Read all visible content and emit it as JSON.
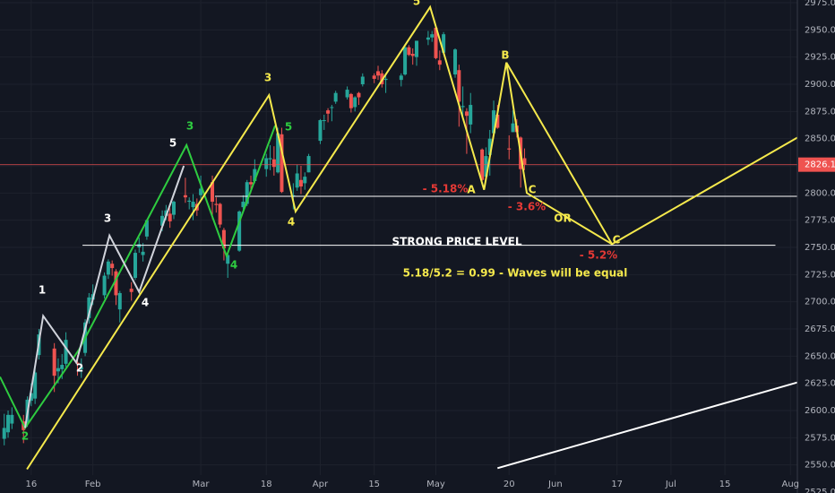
{
  "chart_data": {
    "type": "candlestick",
    "up_color": "#26a69a",
    "down_color": "#ef5350",
    "grid": true,
    "xlim": [
      7.9,
      214.8
    ],
    "ylim": [
      2525,
      2975
    ],
    "xticks": [
      16,
      {
        "value": 32,
        "label": "Feb"
      },
      {
        "value": 60,
        "label": "Mar"
      },
      {
        "value": 77,
        "label": "18"
      },
      {
        "value": 91,
        "label": "Apr"
      },
      {
        "value": 105,
        "label": "15"
      },
      {
        "value": 121,
        "label": "May"
      },
      {
        "value": 140,
        "label": "20"
      },
      {
        "value": 152,
        "label": "Jun"
      },
      {
        "value": 168,
        "label": "17"
      },
      {
        "value": 182,
        "label": "Jul"
      },
      {
        "value": 196,
        "label": "15"
      },
      {
        "value": 213,
        "label": "Aug"
      }
    ],
    "yticks": [
      {
        "value": 2525,
        "label": "2525.0"
      },
      {
        "value": 2550,
        "label": "2550.0"
      },
      {
        "value": 2575,
        "label": "2575.0"
      },
      {
        "value": 2600,
        "label": "2600.0"
      },
      {
        "value": 2625,
        "label": "2625.0"
      },
      {
        "value": 2650,
        "label": "2650.0"
      },
      {
        "value": 2675,
        "label": "2675.0"
      },
      {
        "value": 2700,
        "label": "2700.0"
      },
      {
        "value": 2725,
        "label": "2725.0"
      },
      {
        "value": 2750,
        "label": "2750.0"
      },
      {
        "value": 2775,
        "label": "2775.0"
      },
      {
        "value": 2800,
        "label": "2800.0"
      },
      {
        "value": 2825,
        "label": "2825.0"
      },
      {
        "value": 2850,
        "label": "2850.0"
      },
      {
        "value": 2875,
        "label": "2875.0"
      },
      {
        "value": 2900,
        "label": "2900.0"
      },
      {
        "value": 2925,
        "label": "2925.0"
      },
      {
        "value": 2950,
        "label": "2950.0"
      },
      {
        "value": 2975,
        "label": "2975.0"
      }
    ],
    "x": [
      9,
      10,
      11,
      14,
      15,
      16,
      17,
      18,
      22,
      23,
      24,
      25,
      28,
      29,
      30,
      31,
      32,
      35,
      36,
      37,
      38,
      39,
      42,
      43,
      44,
      45,
      46,
      50,
      51,
      52,
      53,
      56,
      57,
      58,
      59,
      60,
      63,
      64,
      65,
      66,
      67,
      70,
      71,
      72,
      73,
      74,
      77,
      78,
      79,
      80,
      81,
      84,
      85,
      86,
      87,
      88,
      91,
      92,
      93,
      94,
      95,
      98,
      99,
      100,
      101,
      102,
      105,
      106,
      107,
      108,
      112,
      113,
      114,
      115,
      116,
      119,
      120,
      121,
      122,
      123,
      126,
      127,
      128,
      129,
      130,
      133,
      134,
      135,
      136,
      137,
      140,
      141,
      142,
      143,
      144
    ],
    "open": [
      2574,
      2580,
      2588,
      2590,
      2588,
      2609,
      2611,
      2651,
      2657,
      2636,
      2638,
      2643,
      2644,
      2638,
      2653,
      2685,
      2702,
      2706,
      2725,
      2735,
      2728,
      2693,
      2712,
      2722,
      2750,
      2743,
      2760,
      2770,
      2779,
      2781,
      2780,
      2798,
      2792,
      2787,
      2790,
      2798,
      2810,
      2790,
      2790,
      2766,
      2735,
      2747,
      2787,
      2790,
      2810,
      2811,
      2822,
      2831,
      2831,
      2819,
      2854,
      2797,
      2805,
      2812,
      2809,
      2819,
      2848,
      2867,
      2876,
      2879,
      2884,
      2888,
      2891,
      2879,
      2892,
      2900,
      2908,
      2912,
      2910,
      2904,
      2904,
      2909,
      2934,
      2928,
      2925,
      2941,
      2943,
      2952,
      2922,
      2929,
      2909,
      2913,
      2879,
      2875,
      2863,
      2840,
      2815,
      2835,
      2855,
      2872,
      2841,
      2856,
      2862,
      2851,
      2832
    ],
    "high": [
      2597,
      2600,
      2603,
      2596,
      2613,
      2625,
      2639,
      2675,
      2662,
      2648,
      2652,
      2672,
      2651,
      2648,
      2684,
      2708,
      2716,
      2727,
      2739,
      2738,
      2730,
      2710,
      2718,
      2748,
      2759,
      2754,
      2776,
      2784,
      2789,
      2786,
      2793,
      2814,
      2796,
      2799,
      2795,
      2816,
      2816,
      2796,
      2791,
      2768,
      2745,
      2784,
      2798,
      2812,
      2816,
      2831,
      2836,
      2844,
      2843,
      2860,
      2860,
      2809,
      2826,
      2825,
      2819,
      2836,
      2868,
      2872,
      2878,
      2881,
      2894,
      2898,
      2892,
      2889,
      2893,
      2910,
      2910,
      2917,
      2913,
      2908,
      2910,
      2937,
      2936,
      2933,
      2940,
      2949,
      2949,
      2955,
      2931,
      2948,
      2933,
      2918,
      2898,
      2878,
      2892,
      2841,
      2842,
      2858,
      2885,
      2881,
      2853,
      2876,
      2868,
      2852,
      2841
    ],
    "low": [
      2568,
      2575,
      2583,
      2570,
      2585,
      2604,
      2606,
      2647,
      2617,
      2625,
      2629,
      2640,
      2632,
      2630,
      2650,
      2680,
      2697,
      2703,
      2721,
      2724,
      2697,
      2681,
      2701,
      2720,
      2745,
      2737,
      2757,
      2765,
      2775,
      2768,
      2776,
      2791,
      2785,
      2775,
      2779,
      2795,
      2776,
      2782,
      2768,
      2738,
      2722,
      2746,
      2785,
      2788,
      2800,
      2809,
      2815,
      2821,
      2816,
      2818,
      2800,
      2785,
      2802,
      2799,
      2803,
      2819,
      2845,
      2858,
      2865,
      2866,
      2882,
      2886,
      2874,
      2875,
      2881,
      2898,
      2901,
      2904,
      2897,
      2892,
      2898,
      2908,
      2926,
      2918,
      2917,
      2936,
      2939,
      2923,
      2913,
      2927,
      2906,
      2861,
      2870,
      2836,
      2855,
      2811,
      2815,
      2816,
      2854,
      2859,
      2831,
      2856,
      2851,
      2805,
      2821
    ],
    "close": [
      2584,
      2596,
      2596,
      2582,
      2610,
      2616,
      2635,
      2670,
      2632,
      2639,
      2642,
      2665,
      2643,
      2640,
      2681,
      2704,
      2707,
      2724,
      2737,
      2731,
      2706,
      2708,
      2709,
      2745,
      2753,
      2746,
      2775,
      2779,
      2784,
      2774,
      2792,
      2796,
      2793,
      2792,
      2784,
      2804,
      2792,
      2789,
      2771,
      2749,
      2743,
      2783,
      2792,
      2810,
      2808,
      2822,
      2832,
      2832,
      2824,
      2855,
      2801,
      2798,
      2818,
      2806,
      2815,
      2834,
      2867,
      2867,
      2873,
      2879,
      2892,
      2895,
      2878,
      2888,
      2888,
      2907,
      2905,
      2908,
      2900,
      2905,
      2908,
      2934,
      2927,
      2926,
      2940,
      2943,
      2946,
      2924,
      2918,
      2946,
      2932,
      2884,
      2880,
      2871,
      2881,
      2812,
      2834,
      2850,
      2876,
      2860,
      2840,
      2864,
      2856,
      2822,
      2826
    ],
    "last_price": {
      "value": 2826.1,
      "label": "2826.1",
      "color": "#ef5350"
    },
    "lines": [
      {
        "color": "#ffffff",
        "x": [
          29.3,
          209.1
        ],
        "y": [
          2752,
          2752
        ]
      },
      {
        "color": "#ffffff",
        "x": [
          63.7,
          214.8
        ],
        "y": [
          2797,
          2797
        ]
      },
      {
        "color": "#ffffff",
        "x": [
          137,
          214.9
        ],
        "y": [
          2547,
          2626
        ]
      },
      {
        "color": "#2ecc40",
        "x": [
          7.9,
          14.4,
          28.4,
          56.3,
          66.7,
          79.3
        ],
        "y": [
          2631,
          2584,
          2656,
          2844,
          2742,
          2862
        ]
      },
      {
        "color": "#d1d4dc",
        "x": [
          14.4,
          19.1,
          27.7,
          36.3,
          44.0,
          55.6
        ],
        "y": [
          2584,
          2687,
          2644,
          2761,
          2709,
          2825
        ]
      },
      {
        "color": "#f5e94c",
        "x": [
          14.9,
          77.7,
          84.6,
          119.5,
          133.5,
          139.3,
          144.6,
          166.7,
          214.8
        ],
        "y": [
          2546,
          2890,
          2783,
          2971,
          2803,
          2920,
          2800,
          2753,
          2851
        ]
      },
      {
        "color": "#f5e94c",
        "x": [
          139.3,
          166.7
        ],
        "y": [
          2920,
          2753
        ]
      }
    ],
    "annotations": [
      {
        "text": "5",
        "color": "#f5e94c"
      },
      {
        "text": "3",
        "color": "#f5e94c"
      },
      {
        "text": "4",
        "color": "#f5e94c"
      },
      {
        "text": "5",
        "color": "#2ecc40"
      },
      {
        "text": "3",
        "color": "#2ecc40"
      },
      {
        "text": "4",
        "color": "#2ecc40"
      },
      {
        "text": "2",
        "color": "#2ecc40"
      },
      {
        "text": "1",
        "color": "#ffffff"
      },
      {
        "text": "2",
        "color": "#ffffff"
      },
      {
        "text": "3",
        "color": "#ffffff"
      },
      {
        "text": "4",
        "color": "#ffffff"
      },
      {
        "text": "5",
        "color": "#ffffff"
      },
      {
        "text": "A",
        "color": "#f5e94c"
      },
      {
        "text": "B",
        "color": "#f5e94c"
      },
      {
        "text": "C",
        "color": "#f5e94c"
      },
      {
        "text": "C",
        "color": "#f5e94c"
      },
      {
        "text": "- 5.18%",
        "color": "#e53935"
      },
      {
        "text": "- 3.6%",
        "color": "#e53935"
      },
      {
        "text": "- 5.2%",
        "color": "#e53935"
      },
      {
        "text": "OR",
        "color": "#f5e94c"
      },
      {
        "text": "STRONG PRICE LEVEL",
        "color": "#ffffff"
      },
      {
        "text": "5.18/5.2 = 0.99  - Waves will be equal",
        "color": "#f5e94c"
      }
    ]
  }
}
